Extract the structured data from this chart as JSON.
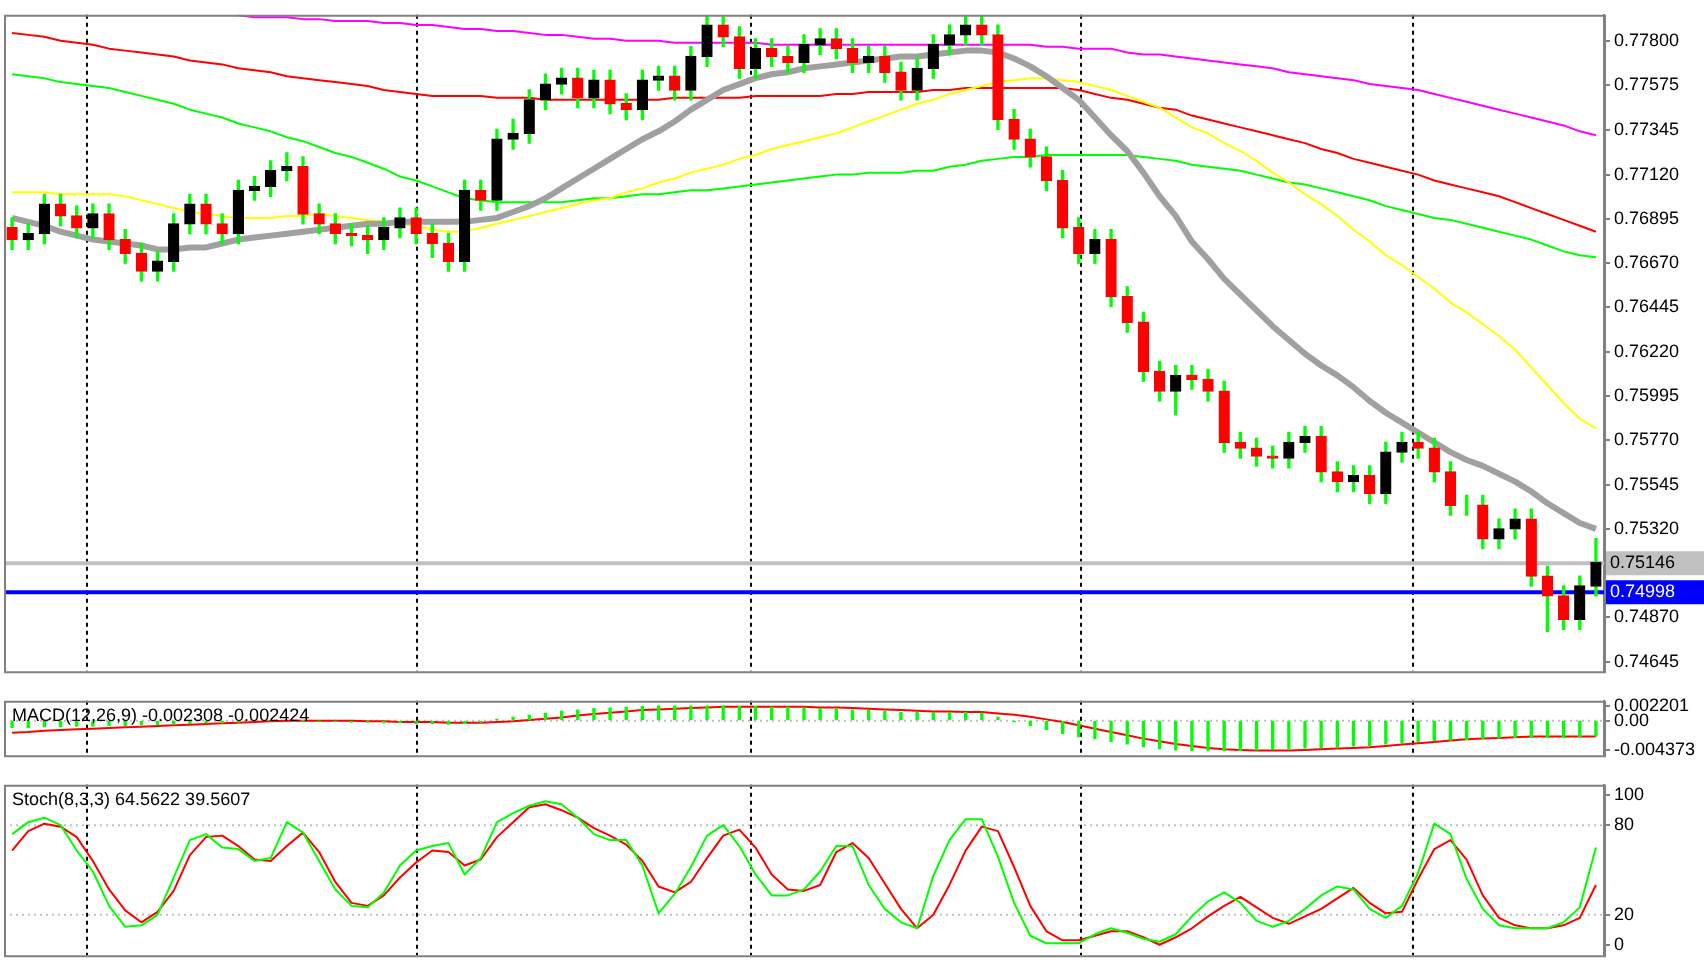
{
  "chart_data": [
    {
      "type": "candlestick",
      "tick_labels": "y",
      "categories": [
        null,
        null,
        null,
        null,
        null,
        null,
        null,
        null,
        null,
        null,
        null,
        null,
        null,
        null,
        null,
        null,
        null,
        null,
        null,
        null,
        null,
        null,
        null,
        null,
        null,
        null,
        null,
        null,
        null,
        null,
        null,
        null,
        null,
        null,
        null,
        null,
        null,
        null,
        null,
        null,
        null,
        null,
        null,
        null,
        null,
        null,
        null,
        null,
        null,
        null,
        null,
        null,
        null,
        null,
        null,
        null,
        null,
        null,
        null,
        null,
        null,
        null,
        null,
        null,
        null,
        null,
        null,
        null,
        null,
        null,
        null,
        null,
        null,
        null,
        null,
        null,
        null,
        null,
        null,
        null,
        null,
        null,
        null,
        null,
        null,
        null,
        null,
        null,
        null,
        null,
        null,
        null,
        null,
        null,
        null,
        null,
        null,
        null,
        null
      ],
      "ohlc": [
        [
          0.7685,
          0.769,
          0.7674,
          0.7679
        ],
        [
          0.7679,
          0.7687,
          0.7674,
          0.7682
        ],
        [
          0.7682,
          0.7702,
          0.7677,
          0.7697
        ],
        [
          0.7697,
          0.7702,
          0.7686,
          0.7691
        ],
        [
          0.7691,
          0.7696,
          0.768,
          0.7685
        ],
        [
          0.7685,
          0.7697,
          0.768,
          0.7692
        ],
        [
          0.7692,
          0.7697,
          0.7674,
          0.7679
        ],
        [
          0.7679,
          0.7684,
          0.7667,
          0.7672
        ],
        [
          0.7672,
          0.7677,
          0.7658,
          0.7663
        ],
        [
          0.7663,
          0.7673,
          0.7658,
          0.7668
        ],
        [
          0.7668,
          0.7692,
          0.7663,
          0.7687
        ],
        [
          0.7687,
          0.7702,
          0.7682,
          0.7697
        ],
        [
          0.7697,
          0.7702,
          0.7682,
          0.7687
        ],
        [
          0.7687,
          0.7692,
          0.7677,
          0.7682
        ],
        [
          0.7682,
          0.7709,
          0.7677,
          0.7704
        ],
        [
          0.7704,
          0.7711,
          0.7699,
          0.7706
        ],
        [
          0.7706,
          0.7719,
          0.7701,
          0.7714
        ],
        [
          0.7714,
          0.7723,
          0.7709,
          0.7716
        ],
        [
          0.7716,
          0.7721,
          0.7687,
          0.7692
        ],
        [
          0.7692,
          0.7697,
          0.7682,
          0.7687
        ],
        [
          0.7687,
          0.7692,
          0.7677,
          0.7682
        ],
        [
          0.7682,
          0.7687,
          0.7676,
          0.7681
        ],
        [
          0.7681,
          0.7686,
          0.7672,
          0.7679
        ],
        [
          0.7679,
          0.769,
          0.7674,
          0.7685
        ],
        [
          0.7685,
          0.7695,
          0.768,
          0.769
        ],
        [
          0.769,
          0.7695,
          0.7677,
          0.7682
        ],
        [
          0.7682,
          0.7687,
          0.767,
          0.7677
        ],
        [
          0.7677,
          0.7682,
          0.7663,
          0.7668
        ],
        [
          0.7668,
          0.7709,
          0.7663,
          0.7704
        ],
        [
          0.7704,
          0.7709,
          0.7694,
          0.7699
        ],
        [
          0.7699,
          0.7735,
          0.7694,
          0.773
        ],
        [
          0.773,
          0.774,
          0.7725,
          0.7733
        ],
        [
          0.7733,
          0.7755,
          0.7728,
          0.775
        ],
        [
          0.775,
          0.7763,
          0.7745,
          0.7758
        ],
        [
          0.7758,
          0.7766,
          0.7753,
          0.7761
        ],
        [
          0.7761,
          0.7766,
          0.7746,
          0.7751
        ],
        [
          0.7751,
          0.7765,
          0.7746,
          0.776
        ],
        [
          0.776,
          0.7765,
          0.7743,
          0.7748
        ],
        [
          0.7748,
          0.7753,
          0.774,
          0.7745
        ],
        [
          0.7745,
          0.7765,
          0.774,
          0.776
        ],
        [
          0.776,
          0.7767,
          0.7755,
          0.7762
        ],
        [
          0.7762,
          0.7767,
          0.775,
          0.7755
        ],
        [
          0.7755,
          0.7777,
          0.775,
          0.7772
        ],
        [
          0.7772,
          0.7793,
          0.7767,
          0.7788
        ],
        [
          0.7788,
          0.7792,
          0.7777,
          0.7782
        ],
        [
          0.7782,
          0.7787,
          0.7761,
          0.7766
        ],
        [
          0.7766,
          0.7781,
          0.7761,
          0.7776
        ],
        [
          0.7776,
          0.7781,
          0.7767,
          0.7772
        ],
        [
          0.7772,
          0.7777,
          0.7764,
          0.7769
        ],
        [
          0.7769,
          0.7783,
          0.7764,
          0.7778
        ],
        [
          0.7778,
          0.7786,
          0.7773,
          0.7781
        ],
        [
          0.7781,
          0.7786,
          0.7771,
          0.7776
        ],
        [
          0.7776,
          0.7781,
          0.7764,
          0.7769
        ],
        [
          0.7769,
          0.7777,
          0.7764,
          0.7772
        ],
        [
          0.7772,
          0.7777,
          0.7759,
          0.7764
        ],
        [
          0.7764,
          0.7769,
          0.775,
          0.7755
        ],
        [
          0.7755,
          0.7771,
          0.775,
          0.7766
        ],
        [
          0.7766,
          0.7783,
          0.7761,
          0.7778
        ],
        [
          0.7778,
          0.7788,
          0.7773,
          0.7783
        ],
        [
          0.7783,
          0.7793,
          0.7778,
          0.7788
        ],
        [
          0.7788,
          0.7793,
          0.7778,
          0.7783
        ],
        [
          0.7783,
          0.7788,
          0.7735,
          0.774
        ],
        [
          0.774,
          0.7745,
          0.7725,
          0.773
        ],
        [
          0.773,
          0.7735,
          0.7716,
          0.7721
        ],
        [
          0.7721,
          0.7726,
          0.7704,
          0.7709
        ],
        [
          0.7709,
          0.7714,
          0.768,
          0.7685
        ],
        [
          0.7685,
          0.769,
          0.7667,
          0.7672
        ],
        [
          0.7672,
          0.7684,
          0.7667,
          0.7679
        ],
        [
          0.7679,
          0.7684,
          0.7645,
          0.765
        ],
        [
          0.765,
          0.7655,
          0.7632,
          0.7637
        ],
        [
          0.7637,
          0.7642,
          0.7607,
          0.7612
        ],
        [
          0.7612,
          0.7617,
          0.7597,
          0.7602
        ],
        [
          0.7602,
          0.7615,
          0.759,
          0.761
        ],
        [
          0.761,
          0.7615,
          0.7603,
          0.7608
        ],
        [
          0.7608,
          0.7613,
          0.7597,
          0.7602
        ],
        [
          0.7602,
          0.7607,
          0.7571,
          0.7576
        ],
        [
          0.7576,
          0.7581,
          0.7568,
          0.7573
        ],
        [
          0.7573,
          0.7578,
          0.7564,
          0.7569
        ],
        [
          0.7569,
          0.7574,
          0.7563,
          0.7568
        ],
        [
          0.7568,
          0.7581,
          0.7563,
          0.7576
        ],
        [
          0.7576,
          0.7584,
          0.7571,
          0.7579
        ],
        [
          0.7579,
          0.7584,
          0.7556,
          0.7561
        ],
        [
          0.7561,
          0.7566,
          0.7551,
          0.7556
        ],
        [
          0.7556,
          0.7564,
          0.7551,
          0.7559
        ],
        [
          0.7559,
          0.7564,
          0.7545,
          0.755
        ],
        [
          0.755,
          0.7576,
          0.7545,
          0.7571
        ],
        [
          0.7571,
          0.7581,
          0.7566,
          0.7576
        ],
        [
          0.7576,
          0.7581,
          0.7568,
          0.7573
        ],
        [
          0.7573,
          0.7578,
          0.7556,
          0.7561
        ],
        [
          0.7561,
          0.7566,
          0.7539,
          0.7544
        ],
        [
          0.7544,
          0.7549,
          0.7539,
          0.7544
        ],
        [
          0.7544,
          0.7549,
          0.7522,
          0.7527
        ],
        [
          0.7527,
          0.7537,
          0.7522,
          0.7532
        ],
        [
          0.7532,
          0.7542,
          0.7527,
          0.7537
        ],
        [
          0.7537,
          0.7542,
          0.7503,
          0.7508
        ],
        [
          0.7508,
          0.7513,
          0.748,
          0.7498
        ],
        [
          0.7498,
          0.7503,
          0.7481,
          0.7486
        ],
        [
          0.7486,
          0.7508,
          0.7481,
          0.7503
        ],
        [
          0.7503,
          0.7527,
          0.7498,
          0.7515
        ]
      ],
      "colors": [
        "#ff0000",
        "#000000",
        "#000000",
        "#ff0000",
        "#ff0000",
        "#000000",
        "#ff0000",
        "#ff0000",
        "#ff0000",
        "#000000",
        "#000000",
        "#000000",
        "#ff0000",
        "#ff0000",
        "#000000",
        "#000000",
        "#000000",
        "#000000",
        "#ff0000",
        "#ff0000",
        "#ff0000",
        "#ff0000",
        "#ff0000",
        "#000000",
        "#000000",
        "#ff0000",
        "#ff0000",
        "#ff0000",
        "#000000",
        "#ff0000",
        "#000000",
        "#000000",
        "#000000",
        "#000000",
        "#000000",
        "#ff0000",
        "#000000",
        "#ff0000",
        "#ff0000",
        "#000000",
        "#000000",
        "#ff0000",
        "#000000",
        "#000000",
        "#ff0000",
        "#ff0000",
        "#000000",
        "#ff0000",
        "#ff0000",
        "#000000",
        "#000000",
        "#ff0000",
        "#ff0000",
        "#000000",
        "#ff0000",
        "#ff0000",
        "#000000",
        "#000000",
        "#000000",
        "#000000",
        "#ff0000",
        "#ff0000",
        "#ff0000",
        "#ff0000",
        "#ff0000",
        "#ff0000",
        "#ff0000",
        "#000000",
        "#ff0000",
        "#ff0000",
        "#ff0000",
        "#ff0000",
        "#000000",
        "#ff0000",
        "#ff0000",
        "#ff0000",
        "#ff0000",
        "#ff0000",
        "#ff0000",
        "#000000",
        "#000000",
        "#ff0000",
        "#ff0000",
        "#000000",
        "#ff0000",
        "#000000",
        "#000000",
        "#ff0000",
        "#ff0000",
        "#ff0000",
        "#000000",
        "#ff0000",
        "#000000",
        "#000000",
        "#ff0000",
        "#ff0000",
        "#ff0000",
        "#000000",
        "#000000"
      ],
      "series": [
        {
          "type": "line",
          "color": "#a0a0a0",
          "values": [
            0.769,
            0.7688,
            0.7686,
            0.7683,
            0.7681,
            0.7679,
            0.7678,
            0.7677,
            0.7676,
            0.7674,
            0.7674,
            0.7675,
            0.7675,
            0.7677,
            0.7679,
            0.768,
            0.7681,
            0.7682,
            0.7683,
            0.7684,
            0.7685,
            0.7686,
            0.7687,
            0.7687,
            0.7688,
            0.7688,
            0.7688,
            0.7688,
            0.7688,
            0.7689,
            0.769,
            0.7693,
            0.7696,
            0.77,
            0.7705,
            0.771,
            0.7715,
            0.772,
            0.7725,
            0.773,
            0.7734,
            0.7739,
            0.7745,
            0.775,
            0.7755,
            0.7758,
            0.7761,
            0.7763,
            0.7764,
            0.7766,
            0.7767,
            0.7768,
            0.7769,
            0.777,
            0.7771,
            0.7772,
            0.7772,
            0.7773,
            0.7774,
            0.7775,
            0.7775,
            0.7774,
            0.7771,
            0.7767,
            0.7762,
            0.7756,
            0.775,
            0.7741,
            0.7732,
            0.7724,
            0.7713,
            0.7701,
            0.7691,
            0.7678,
            0.7669,
            0.7659,
            0.7651,
            0.7643,
            0.7635,
            0.7628,
            0.7621,
            0.7615,
            0.761,
            0.7604,
            0.7597,
            0.7591,
            0.7586,
            0.7581,
            0.7576,
            0.7571,
            0.7567,
            0.7564,
            0.756,
            0.7556,
            0.7551,
            0.7545,
            0.754,
            0.7535,
            0.7532
          ]
        },
        {
          "type": "line",
          "color": "#ffff00",
          "values": [
            0.7703,
            0.7703,
            0.7703,
            0.7702,
            0.7702,
            0.7702,
            0.7702,
            0.7701,
            0.7699,
            0.7697,
            0.7695,
            0.7693,
            0.7692,
            0.7691,
            0.769,
            0.769,
            0.769,
            0.7691,
            0.7691,
            0.7692,
            0.7691,
            0.769,
            0.7689,
            0.7688,
            0.7687,
            0.7686,
            0.7684,
            0.7683,
            0.7683,
            0.7685,
            0.7687,
            0.7689,
            0.7691,
            0.7693,
            0.7695,
            0.7697,
            0.7699,
            0.77,
            0.7703,
            0.7705,
            0.7708,
            0.771,
            0.7713,
            0.7715,
            0.7717,
            0.772,
            0.7722,
            0.7725,
            0.7727,
            0.7729,
            0.7731,
            0.7733,
            0.7736,
            0.7739,
            0.7742,
            0.7745,
            0.7748,
            0.775,
            0.7753,
            0.7755,
            0.7757,
            0.7759,
            0.776,
            0.7761,
            0.7761,
            0.776,
            0.7759,
            0.7757,
            0.7755,
            0.7752,
            0.7749,
            0.7746,
            0.7741,
            0.7736,
            0.7733,
            0.7728,
            0.7724,
            0.7719,
            0.7713,
            0.7708,
            0.7702,
            0.7697,
            0.7691,
            0.7684,
            0.7678,
            0.7671,
            0.7666,
            0.766,
            0.7654,
            0.7647,
            0.7642,
            0.7636,
            0.763,
            0.7623,
            0.7614,
            0.7605,
            0.7596,
            0.7588,
            0.7583
          ]
        },
        {
          "type": "line",
          "color": "#00ff00",
          "values": [
            0.7763,
            0.7762,
            0.7761,
            0.7759,
            0.7758,
            0.7757,
            0.7756,
            0.7754,
            0.7752,
            0.775,
            0.7748,
            0.7745,
            0.7743,
            0.7741,
            0.7738,
            0.7736,
            0.7734,
            0.7731,
            0.7729,
            0.7726,
            0.7723,
            0.7721,
            0.7718,
            0.7715,
            0.7711,
            0.7709,
            0.7706,
            0.7703,
            0.77,
            0.7699,
            0.7698,
            0.7698,
            0.7698,
            0.7698,
            0.7698,
            0.7699,
            0.77,
            0.77,
            0.7701,
            0.7702,
            0.7702,
            0.7703,
            0.7704,
            0.7704,
            0.7705,
            0.7706,
            0.7707,
            0.7708,
            0.7709,
            0.771,
            0.7711,
            0.7712,
            0.7712,
            0.7713,
            0.7713,
            0.7713,
            0.7714,
            0.7714,
            0.7716,
            0.7717,
            0.7719,
            0.772,
            0.7721,
            0.7721,
            0.7722,
            0.7722,
            0.7722,
            0.7722,
            0.7722,
            0.7722,
            0.7721,
            0.772,
            0.7719,
            0.7717,
            0.7716,
            0.7715,
            0.7714,
            0.7712,
            0.771,
            0.7708,
            0.7707,
            0.7705,
            0.7703,
            0.7701,
            0.7699,
            0.7696,
            0.7694,
            0.7692,
            0.769,
            0.7689,
            0.7687,
            0.7685,
            0.7683,
            0.7681,
            0.7679,
            0.7676,
            0.7673,
            0.7671,
            0.767
          ]
        },
        {
          "type": "line",
          "color": "#ff0000",
          "values": [
            0.7784,
            0.7783,
            0.7782,
            0.778,
            0.7779,
            0.7778,
            0.7776,
            0.7775,
            0.7774,
            0.7773,
            0.7772,
            0.777,
            0.7769,
            0.7768,
            0.7766,
            0.7765,
            0.7764,
            0.7762,
            0.7761,
            0.776,
            0.7759,
            0.7758,
            0.7757,
            0.7755,
            0.7754,
            0.7753,
            0.7752,
            0.7752,
            0.7752,
            0.7752,
            0.7751,
            0.7751,
            0.7751,
            0.775,
            0.775,
            0.775,
            0.775,
            0.775,
            0.775,
            0.775,
            0.775,
            0.7751,
            0.7751,
            0.7751,
            0.7751,
            0.7751,
            0.7752,
            0.7752,
            0.7752,
            0.7752,
            0.7752,
            0.7753,
            0.7753,
            0.7754,
            0.7754,
            0.7754,
            0.7754,
            0.7755,
            0.7755,
            0.7756,
            0.7756,
            0.7756,
            0.7756,
            0.7756,
            0.7756,
            0.7756,
            0.7755,
            0.7753,
            0.7751,
            0.775,
            0.7748,
            0.7746,
            0.7745,
            0.7742,
            0.774,
            0.7738,
            0.7736,
            0.7734,
            0.7732,
            0.773,
            0.7728,
            0.7725,
            0.7723,
            0.772,
            0.7718,
            0.7716,
            0.7714,
            0.7712,
            0.7709,
            0.7707,
            0.7705,
            0.7703,
            0.7701,
            0.7698,
            0.7695,
            0.7692,
            0.7689,
            0.7686,
            0.7683
          ]
        },
        {
          "type": "line",
          "color": "#ff00ff",
          "values": [
            null,
            null,
            null,
            null,
            null,
            null,
            null,
            null,
            null,
            null,
            null,
            null,
            null,
            null,
            0.7793,
            0.7792,
            0.7792,
            0.7792,
            0.7791,
            0.7791,
            0.779,
            0.779,
            0.779,
            0.7789,
            0.7789,
            0.7788,
            0.7788,
            0.7787,
            0.7786,
            0.7786,
            0.7785,
            0.7785,
            0.7784,
            0.7783,
            0.7783,
            0.7782,
            0.7781,
            0.7781,
            0.778,
            0.778,
            0.778,
            0.7779,
            0.7779,
            0.7779,
            0.7779,
            0.7779,
            0.7779,
            0.7778,
            0.7778,
            0.7778,
            0.7778,
            0.7778,
            0.7778,
            0.7778,
            0.7778,
            0.7778,
            0.7778,
            0.7778,
            0.7778,
            0.7778,
            0.7778,
            0.7778,
            0.7778,
            0.7778,
            0.7777,
            0.7777,
            0.7776,
            0.7776,
            0.7776,
            0.7774,
            0.7773,
            0.7773,
            0.7772,
            0.7771,
            0.777,
            0.7769,
            0.7768,
            0.7767,
            0.7766,
            0.7764,
            0.7763,
            0.7762,
            0.7761,
            0.776,
            0.7758,
            0.7757,
            0.7756,
            0.7755,
            0.7753,
            0.7751,
            0.7749,
            0.7747,
            0.7745,
            0.7743,
            0.7741,
            0.7739,
            0.7737,
            0.7734,
            0.7732
          ]
        }
      ],
      "ylim": [
        0.74597,
        0.77932
      ],
      "yticks": [
        {
          "value": 0.778,
          "label": "0.77800"
        },
        0.77575,
        0.77345,
        {
          "value": 0.7712,
          "label": "0.77120"
        },
        0.76895,
        {
          "value": 0.7667,
          "label": "0.76670"
        },
        0.76445,
        {
          "value": 0.7622,
          "label": "0.76220"
        },
        0.75995,
        {
          "value": 0.7577,
          "label": "0.75770"
        },
        0.75545,
        {
          "value": 0.7532,
          "label": "0.75320"
        },
        {
          "value": 0.7487,
          "label": "0.74870"
        },
        0.74645
      ],
      "ref_lines": [
        {
          "axis": "y",
          "value": 0.75146,
          "label": "0.75146",
          "color": "#c0c0c0"
        },
        {
          "axis": "y",
          "value": 0.74998,
          "label": "0.74998",
          "color": "#0000ff"
        }
      ]
    },
    {
      "type": "bar",
      "title": "MACD(12,26,9) -0.002308 -0.002424",
      "tick_labels": "y",
      "categories": [
        null,
        null,
        null,
        null,
        null,
        null,
        null,
        null,
        null,
        null,
        null,
        null,
        null,
        null,
        null,
        null,
        null,
        null,
        null,
        null,
        null,
        null,
        null,
        null,
        null,
        null,
        null,
        null,
        null,
        null,
        null,
        null,
        null,
        null,
        null,
        null,
        null,
        null,
        null,
        null,
        null,
        null,
        null,
        null,
        null,
        null,
        null,
        null,
        null,
        null,
        null,
        null,
        null,
        null,
        null,
        null,
        null,
        null,
        null,
        null,
        null,
        null,
        null,
        null,
        null,
        null,
        null,
        null,
        null,
        null,
        null,
        null,
        null,
        null,
        null,
        null,
        null,
        null,
        null,
        null,
        null,
        null,
        null,
        null,
        null,
        null,
        null,
        null,
        null,
        null,
        null,
        null,
        null,
        null,
        null,
        null,
        null,
        null,
        null
      ],
      "series": [
        {
          "type": "bar",
          "color": "#00ff00",
          "values": [
            -0.001,
            -0.001,
            -0.0009,
            -0.0009,
            -0.0008,
            -0.0008,
            -0.0007,
            -0.0007,
            -0.0006,
            -0.0006,
            -0.0005,
            -0.0004,
            -0.0003,
            -0.0003,
            -0.0002,
            null,
            0,
            null,
            0,
            -0.0001,
            -0.0001,
            -0.0002,
            -0.0002,
            -0.0003,
            -0.0003,
            -0.0004,
            -0.0004,
            -0.0005,
            -0.0004,
            -0.0002,
            0.0002,
            0.0005,
            0.0008,
            0.0011,
            0.0014,
            0.0016,
            0.0018,
            0.0019,
            0.002,
            0.0021,
            0.0022,
            0.0022,
            0.0022,
            0.0022,
            0.0022,
            0.0021,
            0.0021,
            0.002,
            0.002,
            0.0019,
            0.0018,
            0.0017,
            0.0016,
            0.0015,
            0.0014,
            0.0012,
            0.0012,
            0.0012,
            0.0012,
            0.0012,
            0.0011,
            0.0005,
            -0.0001,
            -0.0007,
            -0.0013,
            -0.0019,
            -0.0024,
            -0.0027,
            -0.0031,
            -0.0035,
            -0.0039,
            -0.0042,
            -0.0044,
            -0.0045,
            -0.0045,
            -0.0045,
            -0.0045,
            -0.0044,
            -0.0043,
            -0.0042,
            -0.0041,
            -0.004,
            -0.0039,
            -0.0038,
            -0.0037,
            -0.0035,
            -0.0033,
            -0.0031,
            -0.003,
            -0.0029,
            -0.0028,
            -0.0027,
            -0.0026,
            -0.0025,
            -0.0025,
            -0.0025,
            -0.0025,
            -0.0024,
            -0.0023
          ]
        },
        {
          "type": "line",
          "color": "#ff0000",
          "values": [
            -0.0018,
            -0.0017,
            -0.0015,
            -0.0014,
            -0.0013,
            -0.0012,
            -0.0011,
            -0.001,
            -0.0009,
            -0.0008,
            -0.0007,
            -0.0006,
            -0.0005,
            -0.0004,
            -0.0003,
            -0.0002,
            -0.0001,
            0,
            0,
            0,
            0,
            0,
            -0.0001,
            -0.0001,
            -0.0002,
            -0.0002,
            -0.0002,
            -0.0003,
            -0.0003,
            -0.0003,
            -0.0002,
            -0.0001,
            0.0001,
            0.0003,
            0.0005,
            0.0008,
            0.001,
            0.0012,
            0.0014,
            0.0016,
            0.0017,
            0.0018,
            0.0019,
            0.002,
            0.0021,
            0.0021,
            0.0021,
            0.0021,
            0.0021,
            0.0021,
            0.002,
            0.002,
            0.0019,
            0.0018,
            0.0017,
            0.0016,
            0.0015,
            0.0014,
            0.0014,
            0.0013,
            0.0013,
            0.0011,
            0.0009,
            0.0006,
            0.0002,
            -0.0002,
            -0.0007,
            -0.0012,
            -0.0017,
            -0.0022,
            -0.0027,
            -0.0031,
            -0.0035,
            -0.0038,
            -0.0041,
            -0.0043,
            -0.0044,
            -0.0045,
            -0.0045,
            -0.0045,
            -0.0044,
            -0.0043,
            -0.0042,
            -0.0041,
            -0.004,
            -0.0038,
            -0.0036,
            -0.0034,
            -0.0032,
            -0.003,
            -0.0028,
            -0.0027,
            -0.0026,
            -0.0025,
            -0.0024,
            -0.0024,
            -0.0024,
            -0.0024,
            -0.0024
          ]
        }
      ],
      "ylim": [
        -0.0052,
        0.003
      ],
      "yticks": [
        0.002201,
        {
          "value": 0,
          "label": "0.00"
        },
        -0.004373
      ],
      "ref_lines": [
        {
          "axis": "y",
          "value": 0,
          "color": "#c0c0c0",
          "line_style": "dotted"
        }
      ]
    },
    {
      "type": "line",
      "title": "Stoch(8,3,3) 64.5622 39.5607",
      "tick_labels": "y",
      "marker": "none",
      "categories": [
        null,
        null,
        null,
        null,
        null,
        null,
        null,
        null,
        null,
        null,
        null,
        null,
        null,
        null,
        null,
        null,
        null,
        null,
        null,
        null,
        null,
        null,
        null,
        null,
        null,
        null,
        null,
        null,
        null,
        null,
        null,
        null,
        null,
        null,
        null,
        null,
        null,
        null,
        null,
        null,
        null,
        null,
        null,
        null,
        null,
        null,
        null,
        null,
        null,
        null,
        null,
        null,
        null,
        null,
        null,
        null,
        null,
        null,
        null,
        null,
        null,
        null,
        null,
        null,
        null,
        null,
        null,
        null,
        null,
        null,
        null,
        null,
        null,
        null,
        null,
        null,
        null,
        null,
        null,
        null,
        null,
        null,
        null,
        null,
        null,
        null,
        null,
        null,
        null,
        null,
        null,
        null,
        null,
        null,
        null,
        null,
        null,
        null,
        null
      ],
      "series": [
        {
          "color": "#00ff00",
          "values": [
            74,
            82,
            85,
            80,
            63,
            49,
            26,
            12,
            13,
            20,
            45,
            70,
            74,
            65,
            64,
            56,
            58,
            82,
            75,
            56,
            37,
            26,
            25,
            35,
            53,
            63,
            66,
            68,
            47,
            58,
            82,
            88,
            93,
            96,
            94,
            85,
            74,
            70,
            70,
            53,
            21,
            34,
            52,
            73,
            80,
            66,
            47,
            33,
            33,
            37,
            49,
            66,
            66,
            40,
            24,
            15,
            11,
            46,
            70,
            84,
            84,
            59,
            28,
            6,
            1,
            1,
            1,
            7,
            11,
            8,
            4,
            2,
            7,
            19,
            29,
            35,
            28,
            16,
            12,
            16,
            24,
            33,
            39,
            37,
            24,
            18,
            26,
            48,
            81,
            74,
            44,
            24,
            13,
            11,
            11,
            11,
            15,
            25,
            65
          ]
        },
        {
          "color": "#ff0000",
          "values": [
            63,
            76,
            81,
            79,
            72,
            56,
            37,
            23,
            15,
            22,
            36,
            60,
            72,
            73,
            66,
            57,
            56,
            66,
            75,
            62,
            42,
            28,
            26,
            33,
            45,
            55,
            63,
            62,
            53,
            57,
            72,
            82,
            92,
            94,
            90,
            85,
            78,
            73,
            67,
            56,
            39,
            35,
            42,
            58,
            73,
            77,
            65,
            47,
            37,
            36,
            40,
            62,
            68,
            58,
            41,
            24,
            11,
            20,
            40,
            63,
            79,
            76,
            52,
            26,
            9,
            3,
            3,
            6,
            9,
            9,
            5,
            0,
            5,
            11,
            19,
            26,
            32,
            25,
            18,
            14,
            19,
            24,
            31,
            38,
            28,
            21,
            22,
            44,
            64,
            70,
            57,
            33,
            18,
            13,
            11,
            11,
            13,
            18,
            40
          ]
        }
      ],
      "ylim": [
        -7,
        107
      ],
      "yticks": [
        100,
        80,
        20,
        0
      ],
      "ref_lines": [
        {
          "axis": "y",
          "value": 80,
          "color": "#c0c0c0",
          "line_style": "dotted"
        },
        {
          "axis": "y",
          "value": 20,
          "color": "#c0c0c0",
          "line_style": "dotted"
        }
      ]
    }
  ]
}
